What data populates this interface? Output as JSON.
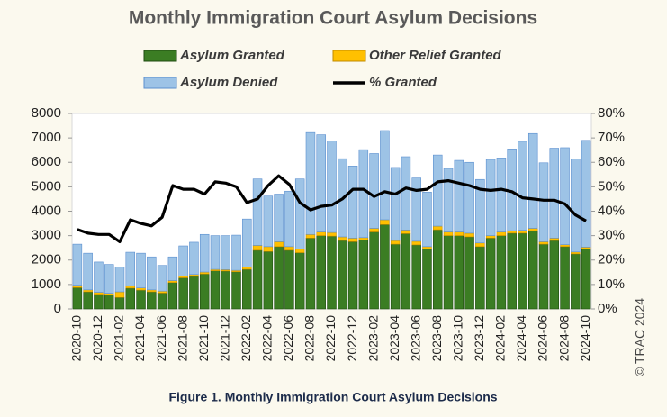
{
  "chart_data": {
    "type": "bar",
    "title": "Monthly Immigration Court Asylum Decisions",
    "caption": "Figure 1. Monthly Immigration Court Asylum Decisions",
    "credit": "© TRAC 2024",
    "categories": [
      "2020-10",
      null,
      "2020-12",
      null,
      "2021-02",
      null,
      "2021-04",
      null,
      "2021-06",
      null,
      "2021-08",
      null,
      "2021-10",
      null,
      "2021-12",
      null,
      "2022-02",
      null,
      "2022-04",
      null,
      "2022-06",
      null,
      "2022-08",
      null,
      "2022-10",
      null,
      "2022-12",
      null,
      "2023-02",
      null,
      "2023-04",
      null,
      "2023-06",
      null,
      "2023-08",
      null,
      "2023-10",
      null,
      "2023-12",
      null,
      "2024-02",
      null,
      "2024-04",
      null,
      "2024-06",
      null,
      "2024-08",
      null,
      "2024-10"
    ],
    "series": [
      {
        "name": "Asylum Granted",
        "color": "#3b7d23",
        "stroke": "#1f4a10",
        "values": [
          870,
          700,
          600,
          560,
          470,
          850,
          770,
          700,
          650,
          1080,
          1270,
          1330,
          1430,
          1560,
          1550,
          1520,
          1620,
          2400,
          2350,
          2550,
          2400,
          2300,
          2900,
          3000,
          2980,
          2800,
          2750,
          2820,
          3150,
          3450,
          2650,
          3080,
          2620,
          2450,
          3240,
          3000,
          3000,
          2950,
          2550,
          2900,
          3000,
          3100,
          3100,
          3200,
          2650,
          2800,
          2550,
          2250,
          2450
        ]
      },
      {
        "name": "Other Relief Granted",
        "color": "#ffc000",
        "stroke": "#c08a00",
        "values": [
          100,
          80,
          80,
          80,
          230,
          100,
          90,
          80,
          80,
          80,
          80,
          80,
          80,
          60,
          60,
          60,
          100,
          200,
          200,
          200,
          150,
          150,
          150,
          150,
          150,
          150,
          150,
          100,
          150,
          200,
          150,
          150,
          150,
          100,
          150,
          150,
          150,
          150,
          150,
          100,
          150,
          100,
          120,
          100,
          100,
          100,
          80,
          80,
          80
        ]
      },
      {
        "name": "Asylum Denied",
        "color": "#9dc3e6",
        "stroke": "#5b8fcf",
        "values": [
          1680,
          1500,
          1240,
          1180,
          1020,
          1370,
          1420,
          1350,
          1050,
          970,
          1230,
          1320,
          1540,
          1380,
          1390,
          1440,
          1960,
          2720,
          2070,
          1950,
          2270,
          2870,
          4170,
          3980,
          3740,
          3200,
          2950,
          3600,
          3060,
          3650,
          2990,
          3000,
          2590,
          2230,
          2910,
          2600,
          2930,
          2900,
          2600,
          3120,
          3030,
          3350,
          3640,
          3880,
          3230,
          3680,
          3970,
          3810,
          4370
        ]
      },
      {
        "name": "% Granted",
        "color": "#000000",
        "type": "line",
        "axis": "y2",
        "values": [
          32.5,
          31,
          30.5,
          30.5,
          27.5,
          36.5,
          35,
          34,
          37.5,
          50.5,
          49,
          49,
          47,
          52,
          51.5,
          50,
          43.5,
          45,
          50.5,
          54.5,
          51,
          43.5,
          40.5,
          42,
          42.5,
          45,
          49,
          49,
          46,
          48,
          47,
          49.5,
          48.5,
          49,
          52,
          52.5,
          51.5,
          50.5,
          49,
          48.5,
          49,
          48,
          45.5,
          45,
          44.5,
          44.5,
          43,
          38.5,
          36
        ]
      }
    ],
    "ylim": [
      0,
      8000
    ],
    "yticks": [
      0,
      1000,
      2000,
      3000,
      4000,
      5000,
      6000,
      7000,
      8000
    ],
    "y2lim": [
      0,
      80
    ],
    "y2ticks": [
      {
        "value": 0,
        "label": "0%"
      },
      {
        "value": 10,
        "label": "10%"
      },
      {
        "value": 20,
        "label": "20%"
      },
      {
        "value": 30,
        "label": "30%"
      },
      {
        "value": 40,
        "label": "40%"
      },
      {
        "value": 50,
        "label": "50%"
      },
      {
        "value": 60,
        "label": "60%"
      },
      {
        "value": 70,
        "label": "70%"
      },
      {
        "value": 80,
        "label": "80%"
      }
    ],
    "grid": false
  }
}
